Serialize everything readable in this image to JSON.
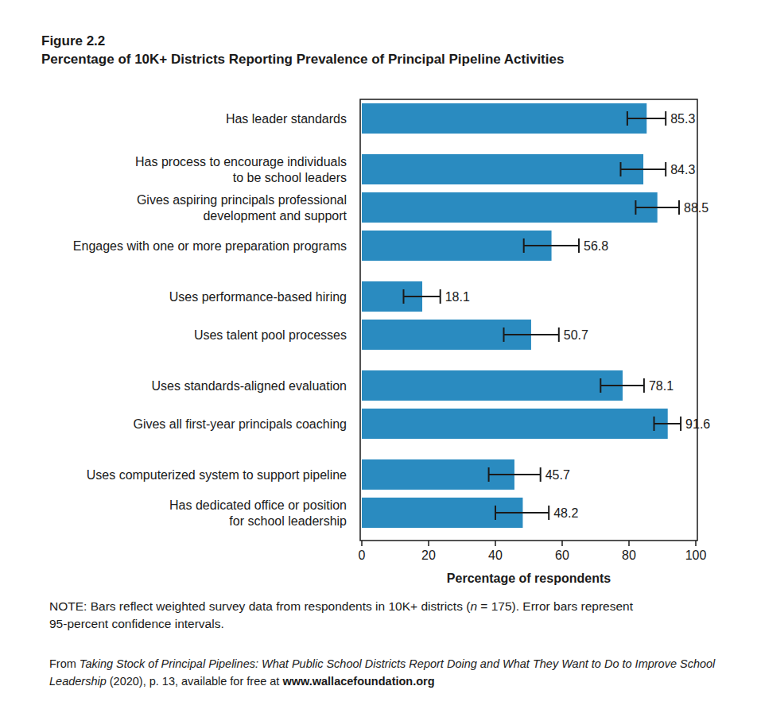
{
  "chart_data": {
    "type": "bar",
    "orientation": "horizontal",
    "figure_label": "Figure 2.2",
    "title": "Percentage of 10K+ Districts Reporting Prevalence of Principal Pipeline Activities",
    "x_label": "Percentage of respondents",
    "categories": [
      "Has leader standards",
      "Has process to encourage individuals\nto be school leaders",
      "Gives aspiring principals professional\ndevelopment and support",
      "Engages with one or more preparation programs",
      "Uses performance-based hiring",
      "Uses talent pool processes",
      "Uses standards-aligned evaluation",
      "Gives all first-year principals coaching",
      "Uses computerized system to support pipeline",
      "Has dedicated office or position\nfor school leadership"
    ],
    "values": [
      85.3,
      84.3,
      88.5,
      56.8,
      18.1,
      50.7,
      78.1,
      91.6,
      45.7,
      48.2
    ],
    "ci_low": [
      79.5,
      77.5,
      82.0,
      48.5,
      12.5,
      42.5,
      71.5,
      87.5,
      38.0,
      40.0
    ],
    "ci_high": [
      91.0,
      91.0,
      95.0,
      65.0,
      23.5,
      59.0,
      84.5,
      95.5,
      53.5,
      56.0
    ],
    "color": "#2a8bc0",
    "xlim": [
      0,
      100
    ],
    "xticks": [
      0,
      20,
      40,
      60,
      80,
      100
    ],
    "grid": false,
    "data_labels": true,
    "note": [
      "NOTE: Bars reflect weighted survey data from respondents in 10K+ districts (",
      "n",
      " = 175). Error bars represent 95-percent confidence intervals."
    ],
    "source": [
      "From ",
      "Taking Stock of Principal Pipelines: What Public School Districts Report Doing and What They Want to Do to Improve School Leadership",
      " (2020), p. 13, available for free at ",
      "www.wallacefoundation.org"
    ]
  }
}
